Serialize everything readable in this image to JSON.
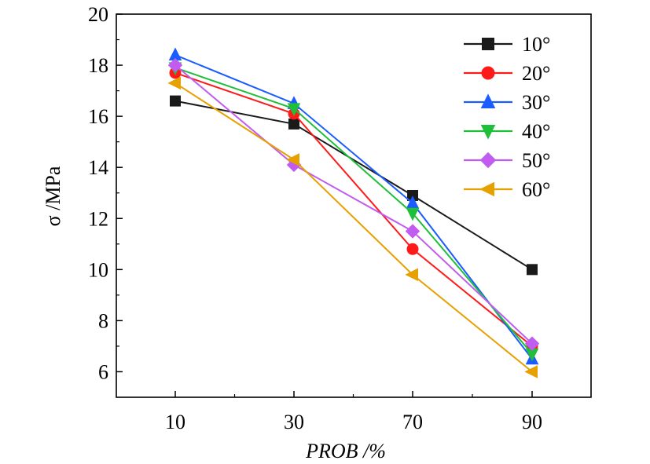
{
  "chart_data": {
    "type": "line",
    "title": "",
    "xlabel": "PROB /%",
    "ylabel": "σ /MPa",
    "categories": [
      "10",
      "30",
      "70",
      "90"
    ],
    "ylim": [
      5,
      20
    ],
    "yticks": [
      "6",
      "8",
      "10",
      "12",
      "14",
      "16",
      "18",
      "20"
    ],
    "grid": false,
    "legend_position": "top-right",
    "series": [
      {
        "name": "10°",
        "color": "#1a1a1a",
        "marker": "square",
        "values": [
          16.6,
          15.7,
          12.9,
          10.0
        ]
      },
      {
        "name": "20°",
        "color": "#ff1a1a",
        "marker": "circle",
        "values": [
          17.7,
          16.1,
          10.8,
          7.0
        ]
      },
      {
        "name": "30°",
        "color": "#1a5cff",
        "marker": "triangle-up",
        "values": [
          18.4,
          16.5,
          12.6,
          6.5
        ]
      },
      {
        "name": "40°",
        "color": "#1fbf3a",
        "marker": "triangle-down",
        "values": [
          17.9,
          16.3,
          12.2,
          6.7
        ]
      },
      {
        "name": "50°",
        "color": "#c05cf0",
        "marker": "diamond",
        "values": [
          18.0,
          14.1,
          11.5,
          7.1
        ]
      },
      {
        "name": "60°",
        "color": "#e6a000",
        "marker": "triangle-left",
        "values": [
          17.3,
          14.3,
          9.8,
          6.0
        ]
      }
    ]
  }
}
